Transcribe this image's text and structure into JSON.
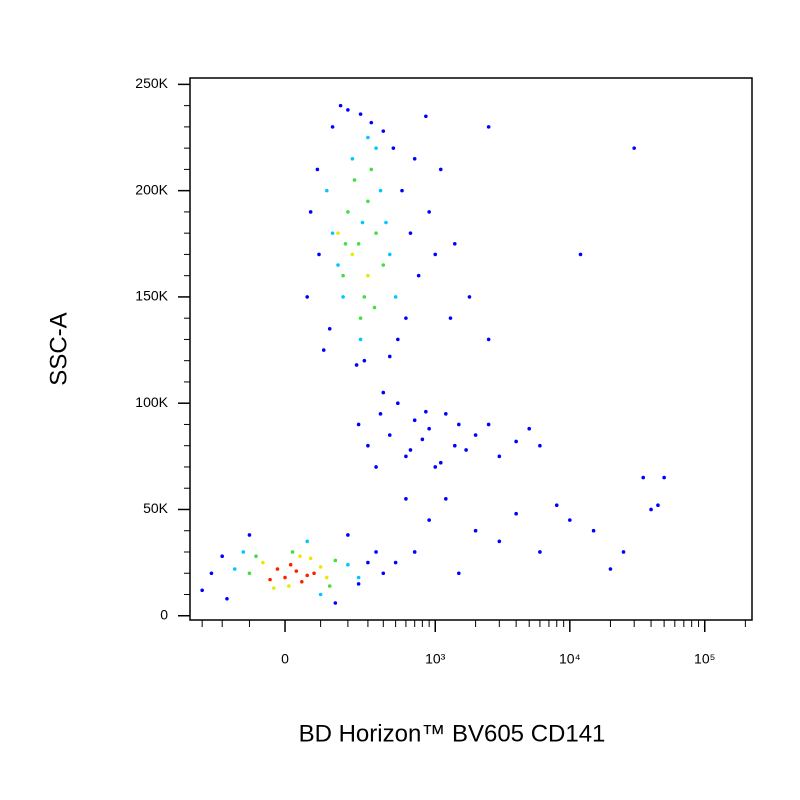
{
  "chart_data": {
    "type": "scatter",
    "x_label": "BD Horizon™ BV605 CD141",
    "y_label": "SSC-A",
    "xscale": "asinh",
    "xscale_cofactor": 155,
    "xlim": [
      -377,
      224000
    ],
    "xticks": [
      0,
      {
        "value": 1000,
        "label": "10³"
      },
      {
        "value": 10000,
        "label": "10⁴"
      },
      {
        "value": 100000,
        "label": "10⁵"
      }
    ],
    "x_minor_ticks": [
      -300,
      -200,
      -100,
      100,
      200,
      300,
      400,
      500,
      600,
      700,
      800,
      900,
      2000,
      3000,
      4000,
      5000,
      6000,
      7000,
      8000,
      9000,
      20000,
      30000,
      40000,
      50000,
      60000,
      70000,
      80000,
      90000,
      200000
    ],
    "ylim": [
      -2000,
      253000
    ],
    "yticks": [
      0,
      {
        "value": 50000,
        "label": "50K"
      },
      {
        "value": 100000,
        "label": "100K"
      },
      {
        "value": 150000,
        "label": "150K"
      },
      {
        "value": 200000,
        "label": "200K"
      },
      {
        "value": 250000,
        "label": "250K"
      }
    ],
    "y_minor_ticks": [
      10000,
      20000,
      30000,
      40000,
      60000,
      70000,
      80000,
      90000,
      110000,
      120000,
      130000,
      140000,
      160000,
      170000,
      180000,
      190000,
      210000,
      220000,
      230000,
      240000
    ],
    "series": [
      {
        "color": "#0000ff",
        "x": [
          60,
          90,
          110,
          140,
          200,
          260,
          320,
          400,
          480,
          560,
          650,
          750,
          900,
          1100,
          1400,
          1800,
          2500,
          70,
          130,
          280,
          520,
          700,
          850,
          1000,
          1300,
          95,
          170,
          240,
          450,
          600,
          250,
          300,
          380,
          450,
          520,
          600,
          700,
          800,
          900,
          1000,
          1200,
          1400,
          1700,
          2000,
          2500,
          3000,
          4000,
          5000,
          6000,
          400,
          650,
          850,
          1100,
          1500,
          350,
          -300,
          -250,
          -200,
          250,
          300,
          350,
          -180,
          200,
          400,
          500,
          150,
          -100,
          700,
          900,
          1200,
          1500,
          2000,
          3000,
          4000,
          6000,
          8000,
          10000,
          15000,
          20000,
          25000,
          30000,
          35000,
          40000,
          50000,
          12000,
          2500,
          600,
          45000
        ],
        "values": [
          150000,
          210000,
          125000,
          230000,
          238000,
          236000,
          232000,
          228000,
          220000,
          200000,
          180000,
          160000,
          190000,
          210000,
          175000,
          150000,
          230000,
          190000,
          135000,
          120000,
          130000,
          215000,
          235000,
          170000,
          140000,
          170000,
          240000,
          118000,
          122000,
          140000,
          90000,
          80000,
          95000,
          85000,
          100000,
          75000,
          92000,
          83000,
          88000,
          70000,
          95000,
          80000,
          78000,
          85000,
          90000,
          75000,
          82000,
          88000,
          80000,
          105000,
          78000,
          96000,
          72000,
          90000,
          70000,
          12000,
          20000,
          28000,
          15000,
          25000,
          30000,
          8000,
          38000,
          20000,
          25000,
          6000,
          38000,
          30000,
          45000,
          55000,
          20000,
          40000,
          35000,
          48000,
          30000,
          52000,
          45000,
          40000,
          22000,
          30000,
          220000,
          65000,
          50000,
          65000,
          170000,
          130000,
          55000,
          52000
        ]
      },
      {
        "color": "#00c8ff",
        "x": [
          120,
          160,
          220,
          300,
          380,
          450,
          500,
          260,
          180,
          420,
          350,
          270,
          140,
          -150,
          200,
          -120,
          250,
          60,
          100
        ],
        "values": [
          200000,
          165000,
          215000,
          225000,
          200000,
          170000,
          150000,
          130000,
          150000,
          185000,
          220000,
          185000,
          180000,
          22000,
          24000,
          30000,
          18000,
          35000,
          10000
        ]
      },
      {
        "color": "#40e040",
        "x": [
          -100,
          150,
          -80,
          130,
          20,
          200,
          250,
          300,
          180,
          350,
          280,
          230,
          400,
          320,
          260,
          190,
          340
        ],
        "values": [
          20000,
          26000,
          28000,
          14000,
          30000,
          190000,
          175000,
          195000,
          160000,
          180000,
          150000,
          205000,
          165000,
          210000,
          140000,
          175000,
          145000
        ]
      },
      {
        "color": "#e8e800",
        "x": [
          -60,
          100,
          10,
          70,
          -30,
          120,
          40,
          220,
          160,
          300
        ],
        "values": [
          25000,
          23000,
          14000,
          27000,
          13000,
          18000,
          28000,
          170000,
          180000,
          160000
        ]
      },
      {
        "color": "#ff2000",
        "x": [
          0,
          30,
          60,
          -20,
          45,
          15,
          80,
          -40
        ],
        "values": [
          18000,
          21000,
          19000,
          22000,
          16000,
          24000,
          20000,
          17000
        ]
      }
    ]
  }
}
